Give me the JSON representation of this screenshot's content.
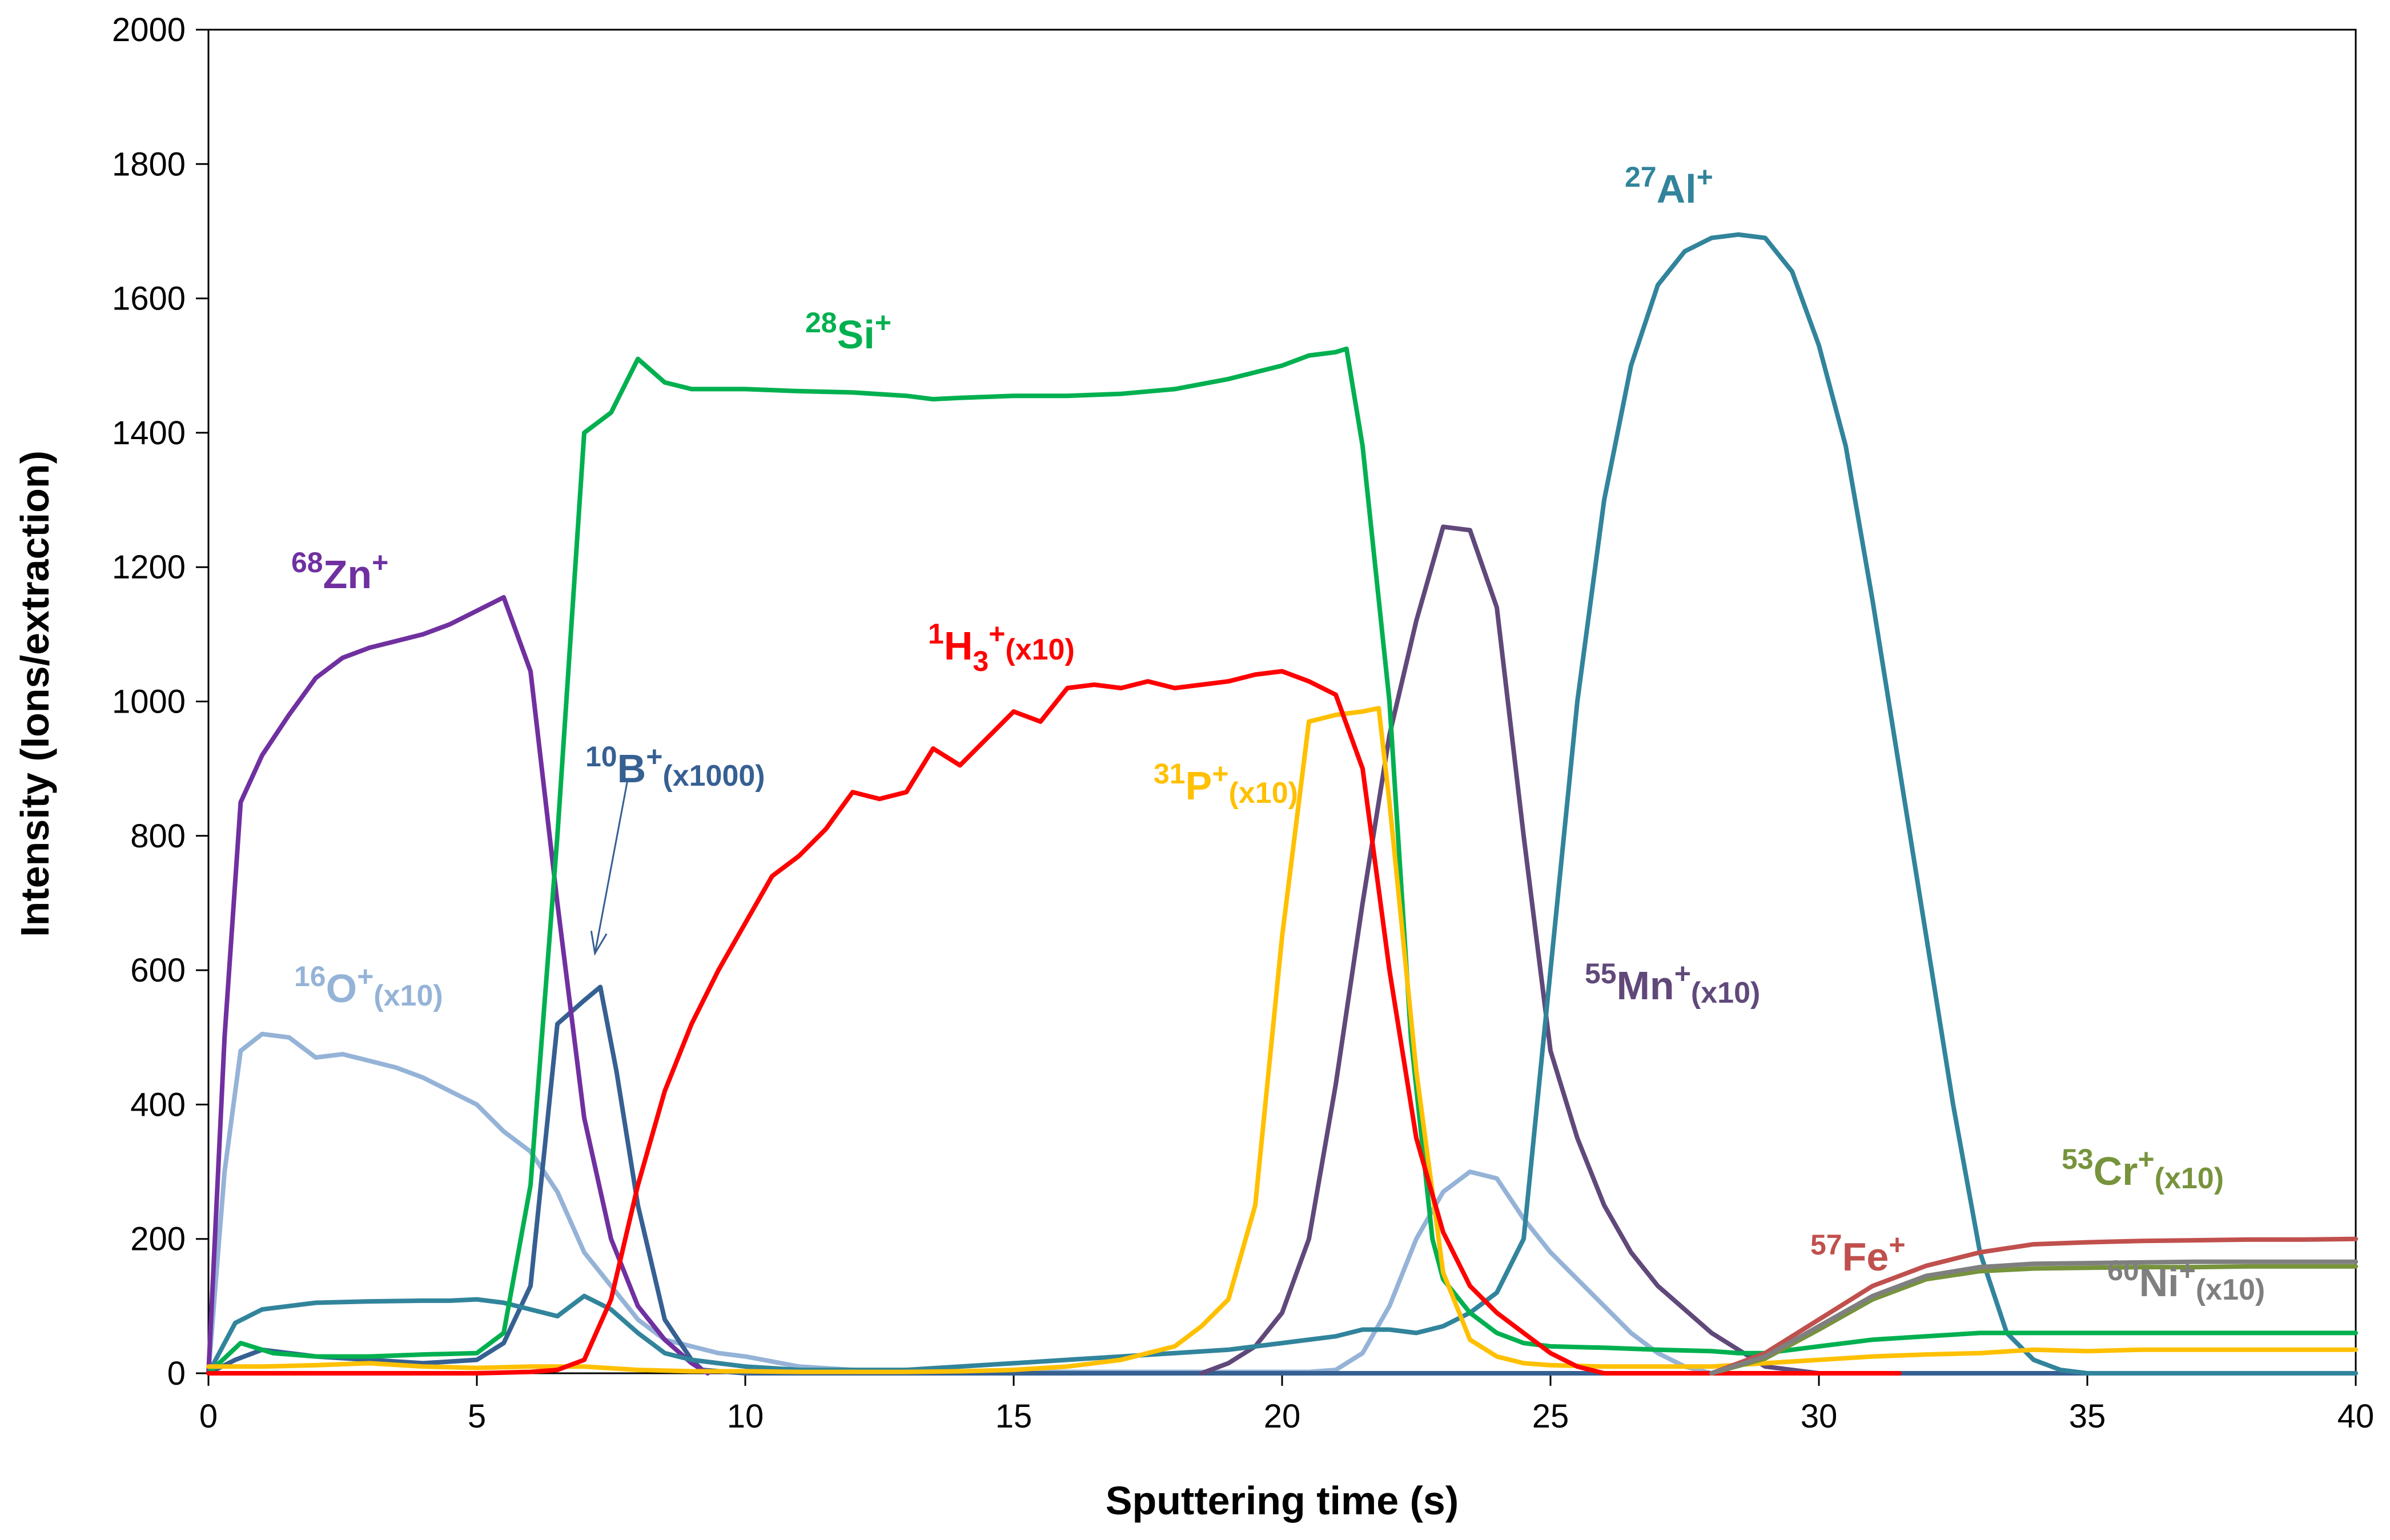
{
  "chart_data": {
    "type": "line",
    "title": "",
    "xlabel": "Sputtering time (s)",
    "ylabel": "Intensity (Ions/extraction)",
    "xlim": [
      0,
      40
    ],
    "ylim": [
      0,
      2000
    ],
    "xticks": [
      0,
      5,
      10,
      15,
      20,
      25,
      30,
      35,
      40
    ],
    "yticks": [
      0,
      200,
      400,
      600,
      800,
      1000,
      1200,
      1400,
      1600,
      1800,
      2000
    ],
    "grid": false,
    "legend": "none (inline labels)",
    "series": [
      {
        "key": "si",
        "color": "#00B050",
        "label": {
          "mass": "28",
          "el": "Si",
          "mult": ""
        },
        "x": [
          0,
          0.6,
          1.2,
          2,
          3,
          4,
          5,
          5.5,
          6,
          6.5,
          7,
          7.5,
          8,
          8.5,
          9,
          10,
          11,
          12,
          13,
          13.5,
          14,
          15,
          16,
          17,
          18,
          19,
          20,
          20.5,
          21,
          21.2,
          21.5,
          22,
          22.4,
          22.8,
          23,
          23.5,
          24,
          24.5,
          25,
          26,
          27,
          28,
          28.5,
          29,
          30,
          31,
          32,
          33,
          34,
          35,
          36,
          37,
          38,
          39,
          40
        ],
        "y": [
          0,
          45,
          30,
          25,
          25,
          28,
          30,
          60,
          280,
          800,
          1400,
          1430,
          1510,
          1475,
          1465,
          1465,
          1462,
          1460,
          1455,
          1450,
          1452,
          1455,
          1455,
          1458,
          1465,
          1480,
          1500,
          1515,
          1520,
          1525,
          1380,
          1000,
          500,
          200,
          140,
          90,
          60,
          45,
          40,
          38,
          35,
          33,
          30,
          30,
          40,
          50,
          55,
          60,
          60,
          60,
          60,
          60,
          60,
          60,
          60
        ]
      },
      {
        "key": "al",
        "color": "#31849B",
        "label": {
          "mass": "27",
          "el": "Al",
          "mult": ""
        },
        "x": [
          0,
          0.5,
          1,
          1.5,
          2,
          3,
          4,
          4.5,
          5,
          5.5,
          6,
          6.5,
          7,
          7.5,
          8,
          8.5,
          9,
          9.5,
          10,
          11,
          12,
          13,
          14,
          15,
          16,
          17,
          18,
          19,
          20,
          21,
          21.5,
          22,
          22.5,
          23,
          23.5,
          24,
          24.5,
          25,
          25.5,
          26,
          26.5,
          27,
          27.5,
          28,
          28.5,
          29,
          29.5,
          30,
          30.5,
          31,
          31.5,
          32,
          32.5,
          33,
          33.5,
          34,
          34.5,
          35,
          36,
          37,
          38,
          39,
          40
        ],
        "y": [
          0,
          75,
          95,
          100,
          105,
          107,
          108,
          108,
          110,
          105,
          95,
          85,
          115,
          95,
          60,
          30,
          20,
          15,
          10,
          5,
          5,
          5,
          10,
          15,
          20,
          25,
          30,
          35,
          45,
          55,
          65,
          65,
          60,
          70,
          90,
          120,
          200,
          600,
          1000,
          1300,
          1500,
          1620,
          1670,
          1690,
          1695,
          1690,
          1640,
          1530,
          1380,
          1150,
          900,
          650,
          400,
          180,
          60,
          20,
          5,
          0,
          0,
          0,
          0,
          0,
          0
        ]
      },
      {
        "key": "zn",
        "color": "#7030A0",
        "label": {
          "mass": "68",
          "el": "Zn",
          "mult": ""
        },
        "x": [
          0,
          0.3,
          0.6,
          1,
          1.5,
          2,
          2.5,
          3,
          3.5,
          4,
          4.5,
          5,
          5.5,
          6,
          6.5,
          7,
          7.5,
          8,
          8.5,
          9,
          9.3
        ],
        "y": [
          0,
          500,
          850,
          920,
          980,
          1035,
          1065,
          1080,
          1090,
          1100,
          1115,
          1135,
          1155,
          1045,
          700,
          380,
          200,
          100,
          50,
          15,
          0
        ]
      },
      {
        "key": "mn",
        "color": "#60497A",
        "label": {
          "mass": "55",
          "el": "Mn",
          "mult": "(x10)"
        },
        "x": [
          18.5,
          19,
          19.5,
          20,
          20.5,
          21,
          21.5,
          22,
          22.5,
          23,
          23.5,
          24,
          24.5,
          25,
          25.5,
          26,
          26.5,
          27,
          28,
          29,
          30
        ],
        "y": [
          0,
          15,
          40,
          90,
          200,
          430,
          700,
          950,
          1120,
          1260,
          1255,
          1140,
          800,
          480,
          350,
          250,
          180,
          130,
          60,
          10,
          0
        ]
      },
      {
        "key": "h3",
        "color": "#FF0000",
        "label": {
          "mass": "1",
          "el": "H",
          "sub": "3",
          "mult": "(x10)"
        },
        "x": [
          0,
          5,
          6,
          6.5,
          7,
          7.5,
          8,
          8.5,
          9,
          9.5,
          10,
          10.5,
          11,
          11.5,
          12,
          12.5,
          13,
          13.5,
          14,
          14.5,
          15,
          15.5,
          16,
          16.5,
          17,
          17.5,
          18,
          18.5,
          19,
          19.5,
          20,
          20.5,
          21,
          21.5,
          22,
          22.5,
          23,
          23.5,
          24,
          24.5,
          25,
          25.5,
          26,
          27,
          28,
          29,
          30,
          31.5
        ],
        "y": [
          0,
          0,
          2,
          5,
          20,
          110,
          280,
          420,
          520,
          600,
          670,
          740,
          770,
          810,
          865,
          855,
          865,
          930,
          905,
          945,
          985,
          970,
          1020,
          1025,
          1020,
          1030,
          1020,
          1025,
          1030,
          1040,
          1045,
          1030,
          1010,
          900,
          600,
          350,
          210,
          130,
          90,
          60,
          30,
          10,
          0,
          0,
          0,
          0,
          0,
          0
        ]
      },
      {
        "key": "p",
        "color": "#FFC000",
        "label": {
          "mass": "31",
          "el": "P",
          "mult": "(x10)"
        },
        "x": [
          0,
          1,
          2,
          3,
          4,
          5,
          6,
          7,
          8,
          9,
          10,
          11,
          12,
          13,
          14,
          15,
          16,
          17,
          18,
          18.5,
          19,
          19.5,
          20,
          20.5,
          21,
          21.5,
          21.8,
          22,
          22.5,
          23,
          23.5,
          24,
          24.5,
          25,
          26,
          27,
          28,
          29,
          30,
          31,
          32,
          33,
          34,
          35,
          36,
          37,
          38,
          39,
          40
        ],
        "y": [
          10,
          10,
          12,
          15,
          10,
          8,
          10,
          10,
          5,
          3,
          3,
          2,
          2,
          2,
          3,
          5,
          10,
          20,
          40,
          70,
          110,
          250,
          650,
          970,
          980,
          985,
          990,
          850,
          450,
          150,
          50,
          25,
          15,
          12,
          10,
          10,
          10,
          15,
          20,
          25,
          28,
          30,
          35,
          33,
          35,
          35,
          35,
          35,
          35
        ]
      },
      {
        "key": "o",
        "color": "#95B3D7",
        "label": {
          "mass": "16",
          "el": "O",
          "mult": "(x10)"
        },
        "x": [
          0,
          0.3,
          0.6,
          1,
          1.5,
          2,
          2.5,
          3,
          3.5,
          4,
          4.5,
          5,
          5.5,
          6,
          6.5,
          7,
          7.5,
          8,
          8.5,
          9,
          9.5,
          10,
          11,
          12,
          13,
          14,
          15,
          16,
          17,
          18,
          19,
          20,
          20.5,
          21,
          21.5,
          22,
          22.5,
          23,
          23.5,
          24,
          24.5,
          25,
          25.5,
          26,
          26.5,
          27,
          27.5,
          28,
          40
        ],
        "y": [
          0,
          300,
          480,
          505,
          500,
          470,
          475,
          465,
          455,
          440,
          420,
          400,
          360,
          330,
          270,
          180,
          130,
          80,
          50,
          40,
          30,
          25,
          10,
          5,
          2,
          2,
          2,
          2,
          2,
          2,
          2,
          2,
          2,
          5,
          30,
          100,
          200,
          270,
          300,
          290,
          230,
          180,
          140,
          100,
          60,
          30,
          10,
          0,
          0
        ]
      },
      {
        "key": "b",
        "color": "#366092",
        "label": {
          "mass": "10",
          "el": "B",
          "mult": "(x1000)"
        },
        "x": [
          0,
          0.5,
          1,
          1.5,
          2,
          3,
          4,
          5,
          5.5,
          6,
          6.5,
          7,
          7.3,
          7.6,
          8,
          8.5,
          9,
          9.2,
          10,
          40
        ],
        "y": [
          0,
          20,
          35,
          30,
          25,
          20,
          15,
          20,
          45,
          130,
          520,
          555,
          575,
          450,
          250,
          80,
          20,
          5,
          0,
          0
        ]
      },
      {
        "key": "fe",
        "color": "#C0504D",
        "label": {
          "mass": "57",
          "el": "Fe",
          "mult": ""
        },
        "x": [
          28,
          29,
          30,
          31,
          32,
          33,
          34,
          35,
          36,
          37,
          38,
          39,
          40
        ],
        "y": [
          0,
          30,
          80,
          130,
          160,
          180,
          192,
          195,
          197,
          198,
          199,
          199,
          200
        ]
      },
      {
        "key": "ni",
        "color": "#7F7F7F",
        "label": {
          "mass": "60",
          "el": "Ni",
          "mult": "(x10)"
        },
        "x": [
          28,
          29,
          30,
          31,
          32,
          33,
          34,
          35,
          36,
          37,
          38,
          39,
          40
        ],
        "y": [
          0,
          25,
          70,
          115,
          145,
          158,
          163,
          164,
          165,
          166,
          166,
          166,
          166
        ]
      },
      {
        "key": "cr",
        "color": "#77933C",
        "label": {
          "mass": "53",
          "el": "Cr",
          "mult": "(x10)"
        },
        "x": [
          28,
          29,
          30,
          31,
          32,
          33,
          34,
          35,
          36,
          37,
          38,
          39,
          40
        ],
        "y": [
          0,
          22,
          65,
          110,
          140,
          152,
          156,
          157,
          158,
          158,
          159,
          159,
          159
        ]
      }
    ],
    "annotations": [
      {
        "key": "b-arrow",
        "text": "",
        "from": [
          7.8,
          880
        ],
        "to": [
          7.2,
          625
        ]
      }
    ]
  }
}
